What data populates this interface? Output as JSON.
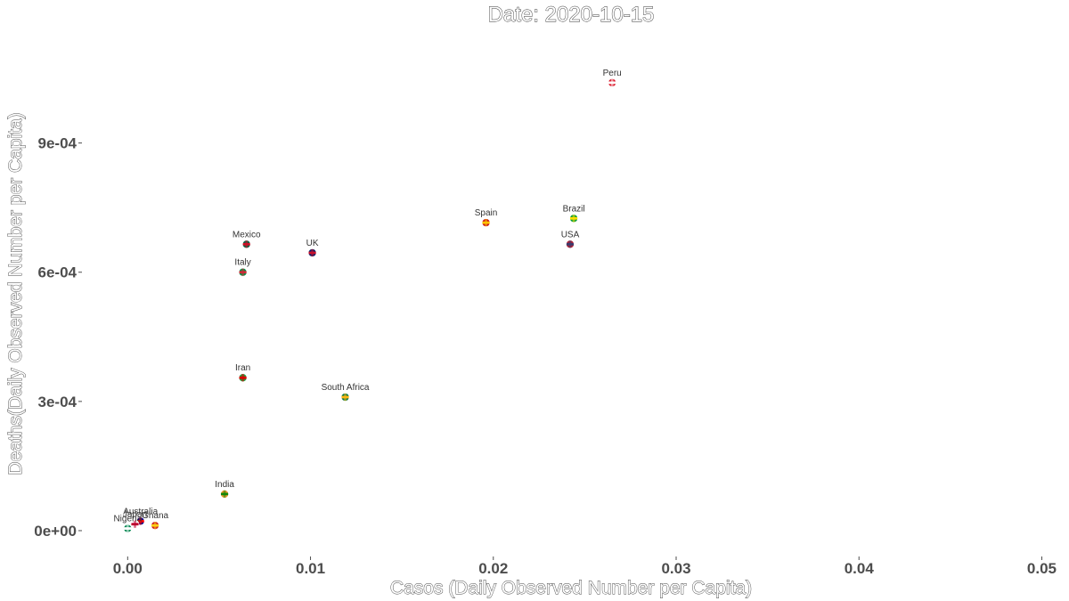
{
  "chart_data": {
    "type": "scatter",
    "title": "Date: 2020-10-15",
    "xlabel": "Casos (Daily Observed Number per Capita)",
    "ylabel": "Deaths(Daily Observed Number per Capita)",
    "xlim": [
      -0.0025,
      0.051
    ],
    "ylim": [
      -6e-05,
      0.00117
    ],
    "x_ticks": [
      0.0,
      0.01,
      0.02,
      0.03,
      0.04,
      0.05
    ],
    "x_tick_labels": [
      "0.00",
      "0.01",
      "0.02",
      "0.03",
      "0.04",
      "0.05"
    ],
    "y_ticks": [
      0.0,
      0.0003,
      0.0006,
      0.0009
    ],
    "y_tick_labels": [
      "0e+00",
      "3e-04",
      "6e-04",
      "9e-04"
    ],
    "grid": false,
    "points": [
      {
        "label": "Peru",
        "x": 0.0265,
        "y": 0.00104,
        "flag": "peru-flag-icon",
        "colors": [
          "#d91023",
          "#ffffff"
        ]
      },
      {
        "label": "Spain",
        "x": 0.0196,
        "y": 0.000715,
        "flag": "spain-flag-icon",
        "colors": [
          "#c60b1e",
          "#ffc400"
        ]
      },
      {
        "label": "Brazil",
        "x": 0.0244,
        "y": 0.000725,
        "flag": "brazil-flag-icon",
        "colors": [
          "#009c3b",
          "#ffdf00"
        ]
      },
      {
        "label": "USA",
        "x": 0.0242,
        "y": 0.000665,
        "flag": "usa-flag-icon",
        "colors": [
          "#b22234",
          "#3c3b6e"
        ]
      },
      {
        "label": "Mexico",
        "x": 0.0065,
        "y": 0.000665,
        "flag": "mexico-flag-icon",
        "colors": [
          "#006847",
          "#ce1126"
        ]
      },
      {
        "label": "UK",
        "x": 0.0101,
        "y": 0.000645,
        "flag": "uk-flag-icon",
        "colors": [
          "#012169",
          "#c8102e"
        ]
      },
      {
        "label": "Italy",
        "x": 0.0063,
        "y": 0.0006,
        "flag": "italy-flag-icon",
        "colors": [
          "#009246",
          "#ce2b37"
        ]
      },
      {
        "label": "Iran",
        "x": 0.0063,
        "y": 0.000355,
        "flag": "iran-flag-icon",
        "colors": [
          "#239f40",
          "#da0000"
        ]
      },
      {
        "label": "South Africa",
        "x": 0.0119,
        "y": 0.00031,
        "flag": "south-africa-flag-icon",
        "colors": [
          "#007a4d",
          "#ffb612"
        ]
      },
      {
        "label": "India",
        "x": 0.0053,
        "y": 8.5e-05,
        "flag": "india-flag-icon",
        "colors": [
          "#ff9933",
          "#138808"
        ]
      },
      {
        "label": "Australia",
        "x": 0.0007,
        "y": 2.2e-05,
        "flag": "australia-flag-icon",
        "colors": [
          "#00008b",
          "#ff0000"
        ]
      },
      {
        "label": "Ghana",
        "x": 0.0015,
        "y": 1.2e-05,
        "flag": "ghana-flag-icon",
        "colors": [
          "#ce1126",
          "#fcd116"
        ]
      },
      {
        "label": "Japan",
        "x": 0.0004,
        "y": 1.5e-05,
        "flag": "japan-flag-icon",
        "colors": [
          "#ffffff",
          "#bc002d"
        ]
      },
      {
        "label": "Nigeria",
        "x": 0.0,
        "y": 5e-06,
        "flag": "nigeria-flag-icon",
        "colors": [
          "#008751",
          "#ffffff"
        ]
      }
    ]
  }
}
